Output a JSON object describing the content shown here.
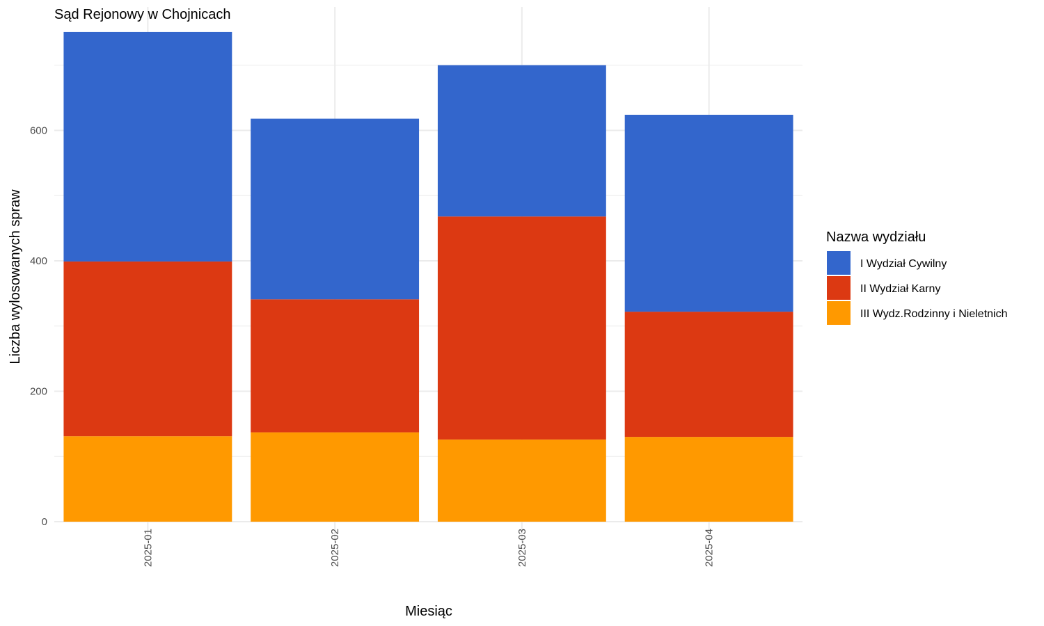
{
  "chart_data": {
    "type": "bar",
    "stacked": true,
    "title": "Sąd Rejonowy w Chojnicach",
    "xlabel": "Miesiąc",
    "ylabel": "Liczba wylosowanych spraw",
    "categories": [
      "2025-01",
      "2025-02",
      "2025-03",
      "2025-04"
    ],
    "ylim": [
      0,
      760
    ],
    "yticks": [
      0,
      200,
      400,
      600
    ],
    "grid": true,
    "legend": {
      "title": "Nazwa wydziału",
      "position": "right"
    },
    "series": [
      {
        "name": "III Wydz.Rodzinny i Nieletnich",
        "color": "#FF9900",
        "values": [
          131,
          137,
          126,
          130
        ]
      },
      {
        "name": "II Wydział Karny",
        "color": "#DC3912",
        "values": [
          268,
          204,
          342,
          192
        ]
      },
      {
        "name": "I Wydział Cywilny",
        "color": "#3366CC",
        "values": [
          352,
          277,
          232,
          302
        ]
      }
    ],
    "legend_order": [
      "I Wydział Cywilny",
      "II Wydział Karny",
      "III Wydz.Rodzinny i Nieletnich"
    ]
  }
}
